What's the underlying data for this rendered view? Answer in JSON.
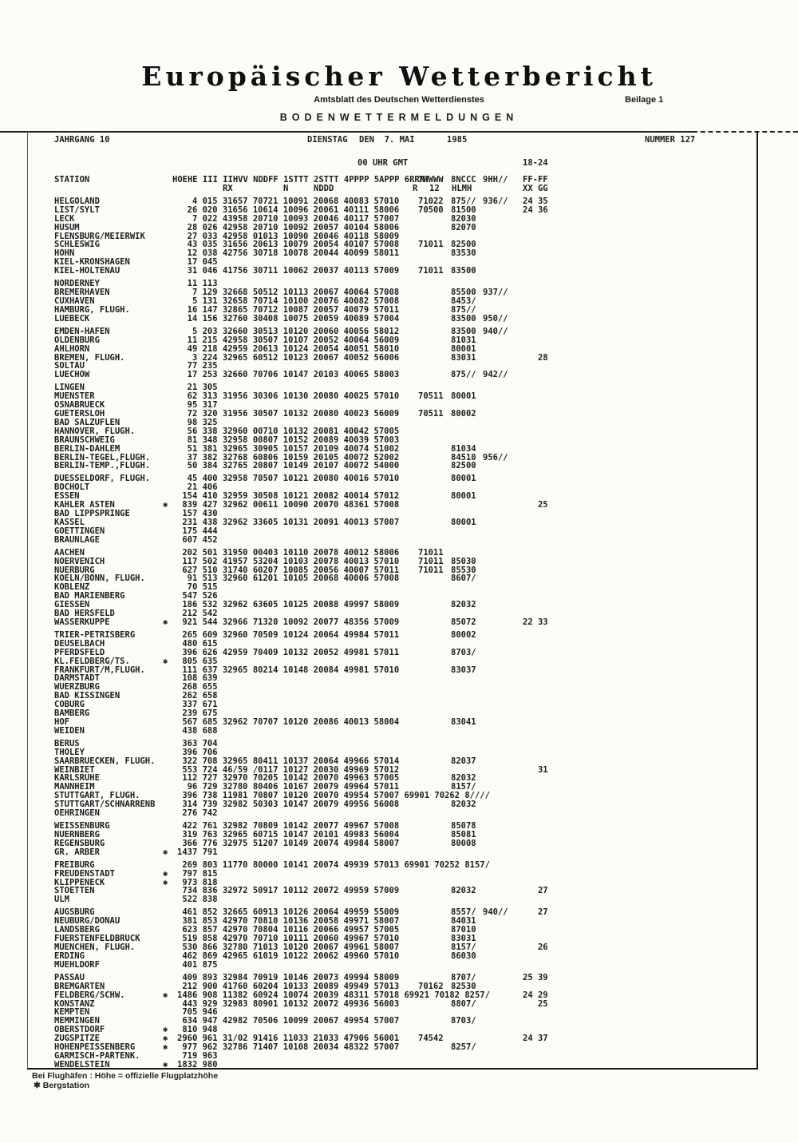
{
  "masthead": {
    "title": "Europäischer Wetterbericht",
    "subtitle": "Amtsblatt des Deutschen Wetterdienstes",
    "section": "BODENWETTERMELDUNGEN",
    "beilage": "Beilage 1"
  },
  "issue": {
    "jahrgang": "JAHRGANG 10",
    "weekday": "DIENSTAG",
    "date": "DEN  7. MAI",
    "year": "1985",
    "nummer": "NUMMER 127",
    "time": "00 UHR GMT",
    "period": "18-24"
  },
  "header": {
    "station": "STATION",
    "cols_line1": "HOEHE III IIHVV NDDFF 1STTT 2STTT 4PPPP 5APPP 6RRRT",
    "w": "7WWWW",
    "c": "8NCCC",
    "h": "9HH//",
    "ff": "FF-FF",
    "rx": "RX",
    "n": "N",
    "nddd": "NDDD",
    "r": "R",
    "twelve": "12",
    "hlmh": "HLMH",
    "xxgg": "XX GG"
  },
  "footnotes": {
    "line1": "Bei Flughäfen : Höhe = offizielle Flugplatzhöhe",
    "star": "✱",
    "line2": "Bergstation"
  },
  "groups": [
    [
      {
        "n": "HELGOLAND",
        "m": "   4 015 31657 70721 10091 20068 40083 57010",
        "w": "71022",
        "c": "875//",
        "h": "936//",
        "f": "24 35"
      },
      {
        "n": "LIST/SYLT",
        "m": "  26 020 31656 10614 10096 20061 40111 58006",
        "w": "70500",
        "c": "81500",
        "f": "24 36"
      },
      {
        "n": "LECK",
        "m": "   7 022 43958 20710 10093 20046 40117 57007",
        "c": "82030"
      },
      {
        "n": "HUSUM",
        "m": "  28 026 42958 20710 10092 20057 40104 58006",
        "c": "82070"
      },
      {
        "n": "FLENSBURG/MEIERWIK",
        "m": "  27 033 42958 01013 10090 20046 40118 58009"
      },
      {
        "n": "SCHLESWIG",
        "m": "  43 035 31656 20613 10079 20054 40107 57008",
        "w": "71011",
        "c": "82500"
      },
      {
        "n": "HOHN",
        "m": "  12 038 42756 30718 10078 20044 40099 58011",
        "c": "83530"
      },
      {
        "n": "KIEL-KRONSHAGEN",
        "m": "  17 045"
      },
      {
        "n": "KIEL-HOLTENAU",
        "m": "  31 046 41756 30711 10062 20037 40113 57009",
        "w": "71011",
        "c": "83500"
      }
    ],
    [
      {
        "n": "NORDERNEY",
        "m": "  11 113"
      },
      {
        "n": "BREMERHAVEN",
        "m": "   7 129 32668 50512 10113 20067 40064 57008",
        "c": "85500",
        "h": "937//"
      },
      {
        "n": "CUXHAVEN",
        "m": "   5 131 32658 70714 10100 20076 40082 57008",
        "c": "8453/"
      },
      {
        "n": "HAMBURG, FLUGH.",
        "m": "  16 147 32865 70712 10087 20057 40079 57011",
        "c": "875//"
      },
      {
        "n": "LUEBECK",
        "m": "  14 156 32760 30408 10075 20059 40089 57004",
        "c": "83500",
        "h": "950//"
      }
    ],
    [
      {
        "n": "EMDEN-HAFEN",
        "m": "   5 203 32660 30513 10120 20060 40056 58012",
        "c": "83500",
        "h": "940//"
      },
      {
        "n": "OLDENBURG",
        "m": "  11 215 42958 30507 10107 20052 40064 56009",
        "c": "81031"
      },
      {
        "n": "AHLHORN",
        "m": "  49 218 42959 20613 10124 20054 40051 58010",
        "c": "80001"
      },
      {
        "n": "BREMEN, FLUGH.",
        "m": "   3 224 32965 60512 10123 20067 40052 56006",
        "c": "83031",
        "f": "   28"
      },
      {
        "n": "SOLTAU",
        "m": "  77 235"
      },
      {
        "n": "LUECHOW",
        "m": "  17 253 32660 70706 10147 20103 40065 58003",
        "c": "875//",
        "h": "942//"
      }
    ],
    [
      {
        "n": "LINGEN",
        "m": "  21 305"
      },
      {
        "n": "MUENSTER",
        "m": "  62 313 31956 30306 10130 20080 40025 57010",
        "w": "70511",
        "c": "80001"
      },
      {
        "n": "OSNABRUECK",
        "m": "  95 317"
      },
      {
        "n": "GUETERSLOH",
        "m": "  72 320 31956 30507 10132 20080 40023 56009",
        "w": "70511",
        "c": "80002"
      },
      {
        "n": "BAD SALZUFLEN",
        "m": "  98 325"
      },
      {
        "n": "HANNOVER, FLUGH.",
        "m": "  56 338 32960 00710 10132 20081 40042 57005"
      },
      {
        "n": "BRAUNSCHWEIG",
        "m": "  81 348 32958 00807 10152 20089 40039 57003"
      },
      {
        "n": "BERLIN-DAHLEM",
        "m": "  51 381 32965 30905 10157 20109 40074 51002",
        "c": "81034"
      },
      {
        "n": "BERLIN-TEGEL,FLUGH.",
        "m": "  37 382 32768 60806 10159 20105 40072 52002",
        "c": "84510",
        "h": "956//"
      },
      {
        "n": "BERLIN-TEMP.,FLUGH.",
        "m": "  50 384 32765 20807 10149 20107 40072 54000",
        "c": "82500"
      }
    ],
    [
      {
        "n": "DUESSELDORF, FLUGH.",
        "m": "  45 400 32958 70507 10121 20080 40016 57010",
        "c": "80001"
      },
      {
        "n": "BOCHOLT",
        "m": "  21 406"
      },
      {
        "n": "ESSEN",
        "m": " 154 410 32959 30508 10121 20082 40014 57012",
        "c": "80001"
      },
      {
        "n": "KAHLER ASTEN",
        "s": true,
        "m": " 839 427 32962 00611 10090 20070 48361 57008",
        "f": "   25"
      },
      {
        "n": "BAD LIPPSPRINGE",
        "m": " 157 430"
      },
      {
        "n": "KASSEL",
        "m": " 231 438 32962 33605 10131 20091 40013 57007",
        "c": "80001"
      },
      {
        "n": "GOETTINGEN",
        "m": " 175 444"
      },
      {
        "n": "BRAUNLAGE",
        "m": " 607 452"
      }
    ],
    [
      {
        "n": "AACHEN",
        "m": " 202 501 31950 00403 10110 20078 40012 58006",
        "w": "71011"
      },
      {
        "n": "NOERVENICH",
        "m": " 117 502 41957 53204 10103 20078 40013 57010",
        "w": "71011",
        "c": "85030"
      },
      {
        "n": "NUERBURG",
        "m": " 627 510 31740 60207 10085 20056 40007 57011",
        "w": "71011",
        "c": "85530"
      },
      {
        "n": "KOELN/BONN, FLUGH.",
        "m": "  91 513 32960 61201 10105 20068 40006 57008",
        "c": "8607/"
      },
      {
        "n": "KOBLENZ",
        "m": "  70 515"
      },
      {
        "n": "BAD MARIENBERG",
        "m": " 547 526"
      },
      {
        "n": "GIESSEN",
        "m": " 186 532 32962 63605 10125 20088 49997 58009",
        "c": "82032"
      },
      {
        "n": "BAD HERSFELD",
        "m": " 212 542"
      },
      {
        "n": "WASSERKUPPE",
        "s": true,
        "m": " 921 544 32966 71320 10092 20077 48356 57009",
        "c": "85072",
        "f": "22 33"
      }
    ],
    [
      {
        "n": "TRIER-PETRISBERG",
        "m": " 265 609 32960 70509 10124 20064 49984 57011",
        "c": "80002"
      },
      {
        "n": "DEUSELBACH",
        "m": " 480 615"
      },
      {
        "n": "PFERDSFELD",
        "m": " 396 626 42959 70409 10132 20052 49981 57011",
        "c": "8703/"
      },
      {
        "n": "KL.FELDBERG/TS.",
        "s": true,
        "m": " 805 635"
      },
      {
        "n": "FRANKFURT/M,FLUGH.",
        "m": " 111 637 32965 80214 10148 20084 49981 57010",
        "c": "83037"
      },
      {
        "n": "DARMSTADT",
        "m": " 108 639"
      },
      {
        "n": "WUERZBURG",
        "m": " 268 655"
      },
      {
        "n": "BAD KISSINGEN",
        "m": " 262 658"
      },
      {
        "n": "COBURG",
        "m": " 337 671"
      },
      {
        "n": "BAMBERG",
        "m": " 239 675"
      },
      {
        "n": "HOF",
        "m": " 567 685 32962 70707 10120 20086 40013 58004",
        "c": "83041"
      },
      {
        "n": "WEIDEN",
        "m": " 438 688"
      }
    ],
    [
      {
        "n": "BERUS",
        "m": " 363 704"
      },
      {
        "n": "THOLEY",
        "m": " 396 706"
      },
      {
        "n": "SAARBRUECKEN, FLUGH.",
        "m": " 322 708 32965 80411 10137 20064 49966 57014",
        "c": "82037"
      },
      {
        "n": "WEINBIET",
        "m": " 553 724 46/59 /0117 10127 20030 49969 57012",
        "f": "   31"
      },
      {
        "n": "KARLSRUHE",
        "m": " 112 727 32970 70205 10142 20070 49963 57005",
        "c": "82032"
      },
      {
        "n": "MANNHEIM",
        "m": "  96 729 32780 80406 10167 20079 49964 57011",
        "c": "8157/"
      },
      {
        "n": "STUTTGART, FLUGH.",
        "m": " 396 738 11981 70807 10120 20070 49954 57007 69901 70262 8////"
      },
      {
        "n": "STUTTGART/SCHNARRENB",
        "m": " 314 739 32982 50303 10147 20079 49956 56008",
        "c": "82032"
      },
      {
        "n": "OEHRINGEN",
        "m": " 276 742"
      }
    ],
    [
      {
        "n": "WEISSENBURG",
        "m": " 422 761 32982 70809 10142 20077 49967 57008",
        "c": "85078"
      },
      {
        "n": "NUERNBERG",
        "m": " 319 763 32965 60715 10147 20101 49983 56004",
        "c": "85081"
      },
      {
        "n": "REGENSBURG",
        "m": " 366 776 32975 51207 10149 20074 49984 58007",
        "c": "80008"
      },
      {
        "n": "GR. ARBER",
        "s": true,
        "m": "1437 791"
      }
    ],
    [
      {
        "n": "FREIBURG",
        "m": " 269 803 11770 80000 10141 20074 49939 57013 69901 70252 8157/"
      },
      {
        "n": "FREUDENSTADT",
        "s": true,
        "m": " 797 815"
      },
      {
        "n": "KLIPPENECK",
        "s": true,
        "m": " 973 818"
      },
      {
        "n": "STOETTEN",
        "m": " 734 836 32972 50917 10112 20072 49959 57009",
        "c": "82032",
        "f": "   27"
      },
      {
        "n": "ULM",
        "m": " 522 838"
      }
    ],
    [
      {
        "n": "AUGSBURG",
        "m": " 461 852 32665 60913 10126 20064 49959 55009",
        "c": "8557/",
        "h": "940//",
        "f": "   27"
      },
      {
        "n": "NEUBURG/DONAU",
        "m": " 381 853 42970 70810 10136 20058 49971 58007",
        "c": "84031"
      },
      {
        "n": "LANDSBERG",
        "m": " 623 857 42970 70804 10116 20066 49957 57005",
        "c": "87010"
      },
      {
        "n": "FUERSTENFELDBRUCK",
        "m": " 519 858 42970 70710 10111 20060 49967 57010",
        "c": "83031"
      },
      {
        "n": "MUENCHEN, FLUGH.",
        "m": " 530 866 32780 71013 10120 20067 49961 58007",
        "c": "8157/",
        "f": "   26"
      },
      {
        "n": "ERDING",
        "m": " 462 869 42965 61019 10122 20062 49960 57010",
        "c": "86030"
      },
      {
        "n": "MUEHLDORF",
        "m": " 401 875"
      }
    ],
    [
      {
        "n": "PASSAU",
        "m": " 409 893 32984 70919 10146 20073 49994 58009",
        "c": "8707/",
        "f": "25 39"
      },
      {
        "n": "BREMGARTEN",
        "m": " 212 900 41760 60204 10133 20089 49949 57013",
        "w": "70162",
        "c": "82530"
      },
      {
        "n": "FELDBERG/SCHW.",
        "s": true,
        "m": "1486 908 11382 60924 10074 20039 48311 57018 69921 70182 8257/",
        "f": "24 29"
      },
      {
        "n": "KONSTANZ",
        "m": " 443 929 32983 80901 10132 20072 49936 56003",
        "c": "8807/",
        "f": "   25"
      },
      {
        "n": "KEMPTEN",
        "m": " 705 946"
      },
      {
        "n": "MEMMINGEN",
        "m": " 634 947 42982 70506 10099 20067 49954 57007",
        "c": "8703/"
      },
      {
        "n": "OBERSTDORF",
        "s": true,
        "m": " 810 948"
      },
      {
        "n": "ZUGSPITZE",
        "s": true,
        "m": "2960 961 31/02 91416 11033 21033 47906 56001",
        "w": "74542",
        "f": "24 37"
      },
      {
        "n": "HOHENPEISSENBERG",
        "s": true,
        "m": " 977 962 32786 71407 10108 20034 48322 57007",
        "c": "8257/"
      },
      {
        "n": "GARMISCH-PARTENK.",
        "m": " 719 963"
      },
      {
        "n": "WENDELSTEIN",
        "s": true,
        "m": "1832 980"
      }
    ]
  ]
}
